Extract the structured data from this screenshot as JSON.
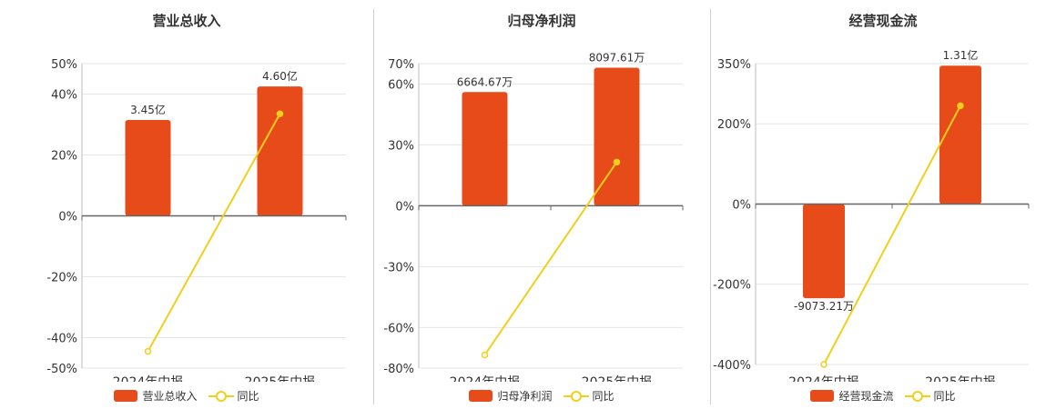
{
  "colors": {
    "bar": "#e84b1a",
    "line": "#f2cf1b",
    "grid": "#e6e6e6",
    "axis": "#666666"
  },
  "chart_data": [
    {
      "type": "bar",
      "title": "营业总收入",
      "categories": [
        "2024年中报",
        "2025年中报"
      ],
      "series": [
        {
          "name": "营业总收入",
          "type": "bar",
          "values": [
            31.5,
            42.5
          ],
          "labels": [
            "3.45亿",
            "4.60亿"
          ]
        },
        {
          "name": "同比",
          "type": "line",
          "values": [
            -44.5,
            33.5
          ]
        }
      ],
      "yticks": [
        50,
        40,
        20,
        0,
        -20,
        -40,
        -50
      ],
      "ytick_labels": [
        "50%",
        "40%",
        "20%",
        "0%",
        "-20%",
        "-40%",
        "-50%"
      ],
      "ylim": [
        -50,
        50
      ]
    },
    {
      "type": "bar",
      "title": "归母净利润",
      "categories": [
        "2024年中报",
        "2025年中报"
      ],
      "series": [
        {
          "name": "归母净利润",
          "type": "bar",
          "values": [
            56,
            68
          ],
          "labels": [
            "6664.67万",
            "8097.61万"
          ]
        },
        {
          "name": "同比",
          "type": "line",
          "values": [
            -73.5,
            21.5
          ]
        }
      ],
      "yticks": [
        70,
        60,
        30,
        0,
        -30,
        -60,
        -80
      ],
      "ytick_labels": [
        "70%",
        "60%",
        "30%",
        "0%",
        "-30%",
        "-60%",
        "-80%"
      ],
      "ylim": [
        -80,
        70
      ]
    },
    {
      "type": "bar",
      "title": "经营现金流",
      "categories": [
        "2024年中报",
        "2025年中报"
      ],
      "series": [
        {
          "name": "经营现金流",
          "type": "bar",
          "values": [
            -235,
            345
          ],
          "labels": [
            "-9073.21万",
            "1.31亿"
          ]
        },
        {
          "name": "同比",
          "type": "line",
          "values": [
            -400,
            245
          ]
        }
      ],
      "yticks": [
        350,
        200,
        0,
        -200,
        -400
      ],
      "ytick_labels": [
        "350%",
        "200%",
        "0%",
        "-200%",
        "-400%"
      ],
      "ylim": [
        -400,
        350
      ]
    }
  ]
}
